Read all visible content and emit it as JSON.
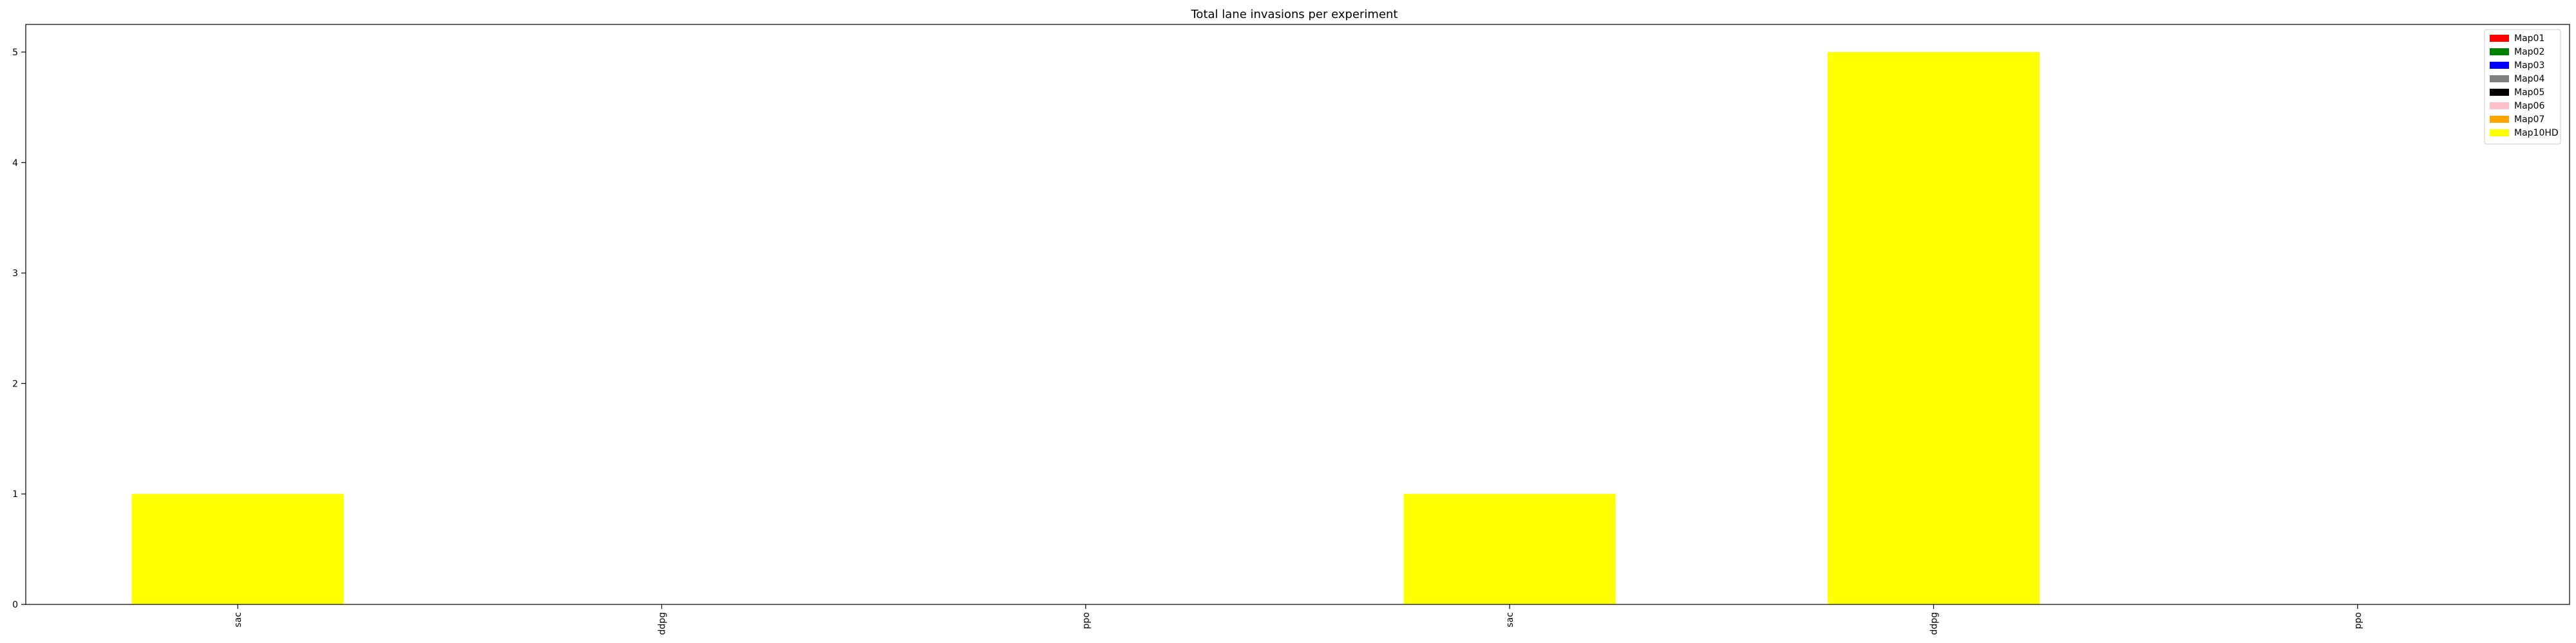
{
  "chart_data": {
    "type": "bar",
    "stacked": true,
    "title": "Total lane invasions per experiment",
    "xlabel": "",
    "ylabel": "",
    "categories": [
      "sac",
      "ddpg",
      "ppo",
      "sac",
      "ddpg",
      "ppo"
    ],
    "ylim": [
      0,
      5.25
    ],
    "yticks": [
      0,
      1,
      2,
      3,
      4,
      5
    ],
    "grid": false,
    "legend_position": "top-right",
    "series": [
      {
        "name": "Map01",
        "color": "#ff0000",
        "values": [
          0,
          0,
          0,
          0,
          0,
          0
        ]
      },
      {
        "name": "Map02",
        "color": "#008000",
        "values": [
          0,
          0,
          0,
          0,
          0,
          0
        ]
      },
      {
        "name": "Map03",
        "color": "#0000ff",
        "values": [
          0,
          0,
          0,
          0,
          0,
          0
        ]
      },
      {
        "name": "Map04",
        "color": "#808080",
        "values": [
          0,
          0,
          0,
          0,
          0,
          0
        ]
      },
      {
        "name": "Map05",
        "color": "#000000",
        "values": [
          0,
          0,
          0,
          0,
          0,
          0
        ]
      },
      {
        "name": "Map06",
        "color": "#ffc0cb",
        "values": [
          0,
          0,
          0,
          0,
          0,
          0
        ]
      },
      {
        "name": "Map07",
        "color": "#ffa500",
        "values": [
          0,
          0,
          0,
          0,
          0,
          0
        ]
      },
      {
        "name": "Map10HD",
        "color": "#ffff00",
        "values": [
          1,
          0,
          0,
          1,
          5,
          0
        ]
      }
    ]
  }
}
